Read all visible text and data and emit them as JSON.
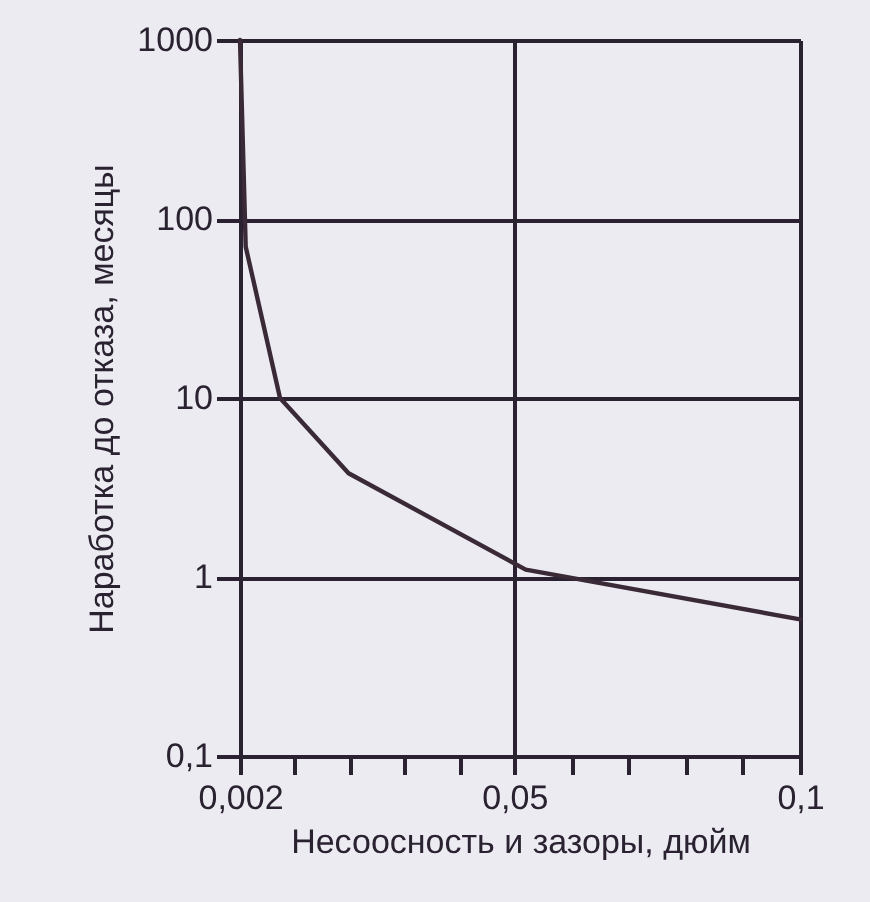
{
  "chart_data": {
    "type": "line",
    "xlabel": "Несоосность и зазоры, дюйм",
    "ylabel": "Наработка до отказа, месяцы",
    "x": [
      0.002,
      0.003,
      0.009,
      0.021,
      0.052,
      0.1
    ],
    "series": [
      {
        "color": "#3a2a38",
        "values": [
          1000,
          70,
          10,
          3.8,
          1.1,
          0.58
        ]
      }
    ],
    "xlim": [
      0.002,
      0.1
    ],
    "xticks": [
      {
        "value": 0.002,
        "label": "0,002"
      },
      {
        "value": 0.0116,
        "label": null
      },
      {
        "value": 0.0212,
        "label": null
      },
      {
        "value": 0.0308,
        "label": null
      },
      {
        "value": 0.0404,
        "label": null
      },
      {
        "value": 0.05,
        "label": "0,05"
      },
      {
        "value": 0.06,
        "label": null
      },
      {
        "value": 0.07,
        "label": null
      },
      {
        "value": 0.08,
        "label": null
      },
      {
        "value": 0.09,
        "label": null
      },
      {
        "value": 0.1,
        "label": "0,1"
      }
    ],
    "ylim": [
      0.1,
      1000
    ],
    "yticks": [
      {
        "value": 0.1,
        "label": "0,1"
      },
      1,
      10,
      100,
      1000
    ],
    "log": "y",
    "grid": true,
    "marker": "none",
    "line_style": "solid"
  }
}
